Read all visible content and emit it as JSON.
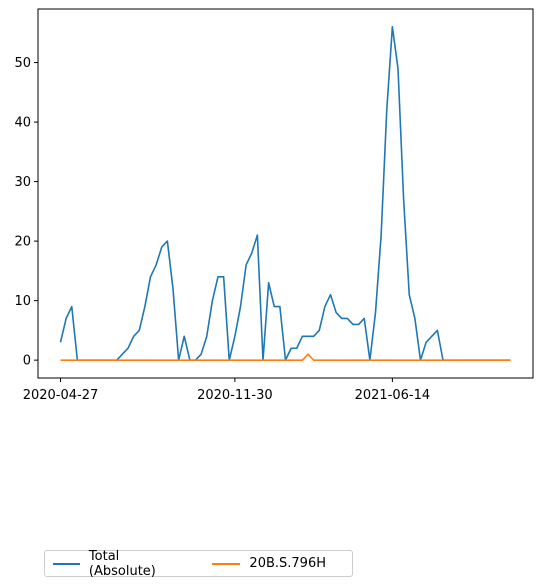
{
  "chart_data": {
    "type": "line",
    "title": "",
    "xlabel": "",
    "ylabel": "",
    "xlim": [
      -4,
      84
    ],
    "ylim": [
      -3,
      59
    ],
    "yticks": [
      0,
      10,
      20,
      30,
      40,
      50
    ],
    "xticks": [
      {
        "index": 0,
        "label": "2020-04-27"
      },
      {
        "index": 31,
        "label": "2020-11-30"
      },
      {
        "index": 59,
        "label": "2021-06-14"
      }
    ],
    "series": [
      {
        "name": "Total (Absolute)",
        "color": "#1f77b4",
        "values": [
          3,
          7,
          9,
          0,
          0,
          0,
          0,
          0,
          0,
          0,
          0,
          1,
          2,
          4,
          5,
          9,
          14,
          16,
          19,
          20,
          12,
          0,
          4,
          0,
          0,
          1,
          4,
          10,
          14,
          14,
          0,
          4,
          9,
          16,
          18,
          21,
          0,
          13,
          9,
          9,
          0,
          2,
          2,
          4,
          4,
          4,
          5,
          9,
          11,
          8,
          7,
          7,
          6,
          6,
          7,
          0,
          8,
          21,
          42,
          56,
          49,
          27,
          11,
          7,
          0,
          3,
          4,
          5,
          0,
          0,
          0,
          0,
          0,
          0,
          0,
          0,
          0,
          0,
          0,
          0,
          0
        ]
      },
      {
        "name": "20B.S.796H",
        "color": "#ff7f0e",
        "values": [
          0,
          0,
          0,
          0,
          0,
          0,
          0,
          0,
          0,
          0,
          0,
          0,
          0,
          0,
          0,
          0,
          0,
          0,
          0,
          0,
          0,
          0,
          0,
          0,
          0,
          0,
          0,
          0,
          0,
          0,
          0,
          0,
          0,
          0,
          0,
          0,
          0,
          0,
          0,
          0,
          0,
          0,
          0,
          0,
          1,
          0,
          0,
          0,
          0,
          0,
          0,
          0,
          0,
          0,
          0,
          0,
          0,
          0,
          0,
          0,
          0,
          0,
          0,
          0,
          0,
          0,
          0,
          0,
          0,
          0,
          0,
          0,
          0,
          0,
          0,
          0,
          0,
          0,
          0,
          0,
          0
        ]
      }
    ],
    "legend_position": "bottom-left"
  }
}
